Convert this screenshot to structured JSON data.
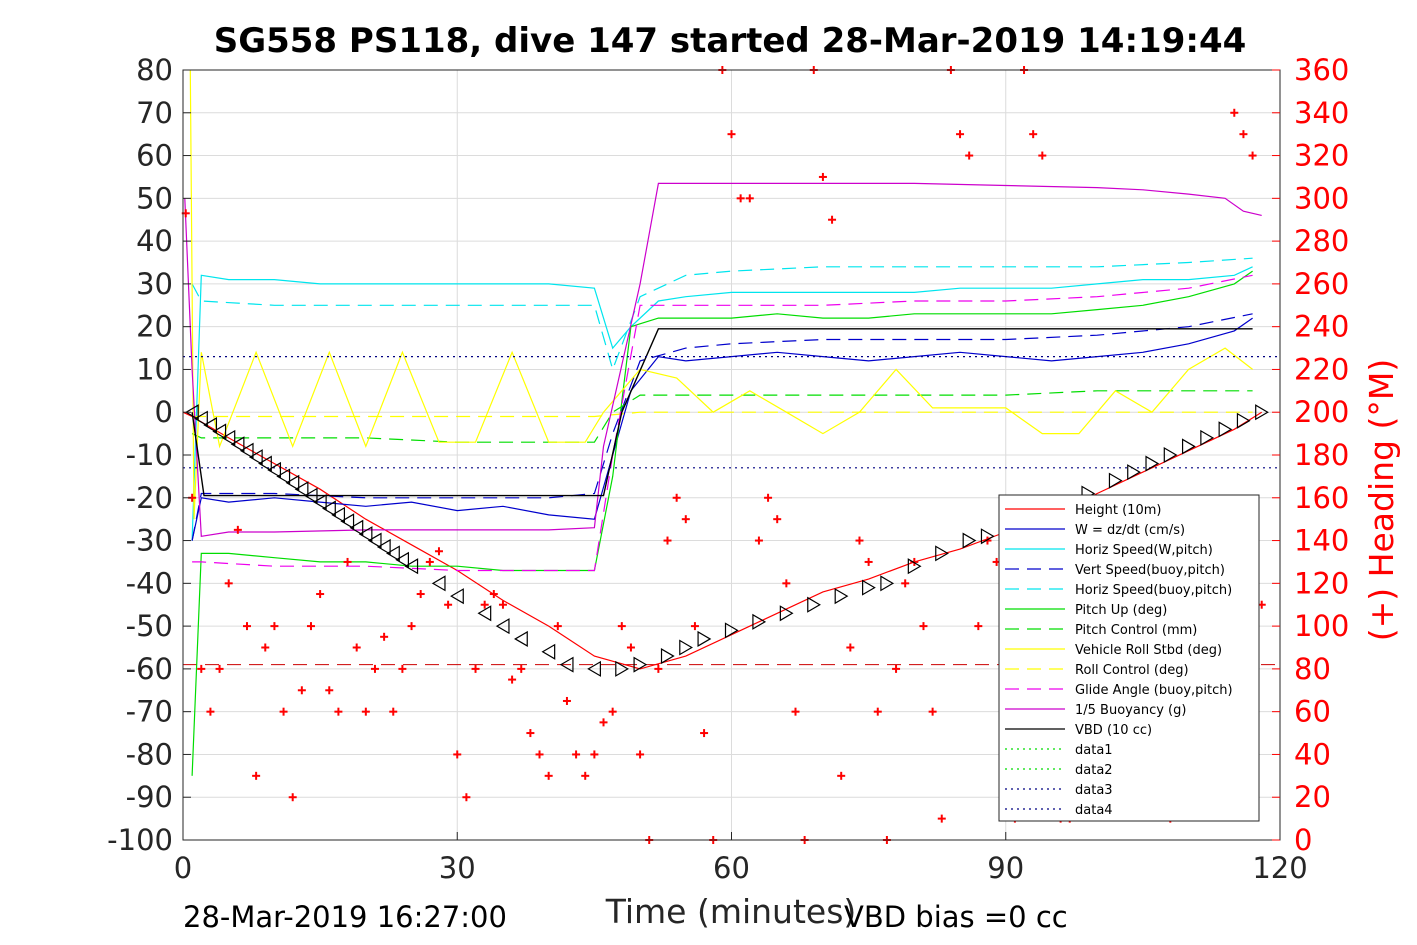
{
  "chart_data": {
    "type": "line",
    "title": "SG558 PS118, dive 147 started 28-Mar-2019 14:19:44",
    "xlabel": "Time (minutes)",
    "ylabel_right": "(+) Heading (°M)",
    "xlim": [
      0,
      120
    ],
    "ylim": [
      -100,
      80
    ],
    "ylim_right": [
      0,
      360
    ],
    "x_ticks": [
      0,
      30,
      60,
      90,
      120
    ],
    "y_ticks": [
      80,
      70,
      60,
      50,
      40,
      30,
      20,
      10,
      0,
      -10,
      -20,
      -30,
      -40,
      -50,
      -60,
      -70,
      -80,
      -90,
      -100
    ],
    "y_ticks_right": [
      360,
      340,
      320,
      300,
      280,
      260,
      240,
      220,
      200,
      180,
      160,
      140,
      120,
      100,
      80,
      60,
      40,
      20,
      0
    ],
    "grid": true,
    "legend_position": "lower-right",
    "footer_left": "28-Mar-2019 16:27:00",
    "footer_right": "VBD bias =0 cc",
    "series": [
      {
        "name": "Height (10m)",
        "color": "#ff0000",
        "style": "solid",
        "x": [
          0,
          1,
          5,
          10,
          15,
          20,
          25,
          30,
          35,
          40,
          45,
          50,
          55,
          60,
          65,
          70,
          75,
          80,
          85,
          90,
          95,
          100,
          105,
          110,
          115,
          118
        ],
        "values": [
          0,
          -1,
          -6,
          -12,
          -18,
          -25,
          -31,
          -37,
          -44,
          -50,
          -57,
          -60,
          -57,
          -52,
          -47,
          -42,
          -39,
          -35,
          -32,
          -28,
          -24,
          -19,
          -14,
          -9,
          -4,
          0
        ]
      },
      {
        "name": "W = dz/dt (cm/s)",
        "color": "#0000cc",
        "style": "solid",
        "x": [
          1,
          2,
          5,
          10,
          15,
          20,
          25,
          30,
          35,
          40,
          45,
          47,
          49,
          52,
          55,
          60,
          65,
          70,
          75,
          80,
          85,
          90,
          95,
          100,
          105,
          110,
          115,
          117
        ],
        "values": [
          -30,
          -20,
          -21,
          -20,
          -21,
          -22,
          -21,
          -23,
          -22,
          -24,
          -25,
          -10,
          5,
          13,
          12,
          13,
          14,
          13,
          12,
          13,
          14,
          13,
          12,
          13,
          14,
          16,
          19,
          22
        ]
      },
      {
        "name": "Horiz Speed(W,pitch)",
        "color": "#00e5ee",
        "style": "solid",
        "x": [
          1,
          2,
          5,
          10,
          15,
          20,
          25,
          30,
          35,
          40,
          45,
          47,
          49,
          52,
          55,
          60,
          65,
          70,
          75,
          80,
          85,
          90,
          95,
          100,
          105,
          110,
          115,
          117
        ],
        "values": [
          -30,
          32,
          31,
          31,
          30,
          30,
          30,
          30,
          30,
          30,
          29,
          15,
          20,
          26,
          27,
          28,
          28,
          28,
          28,
          28,
          29,
          29,
          29,
          30,
          31,
          31,
          32,
          34
        ]
      },
      {
        "name": "Vert Speed(buoy,pitch)",
        "color": "#0000cc",
        "style": "dashed",
        "x": [
          1,
          2,
          10,
          20,
          30,
          40,
          45,
          47,
          50,
          55,
          60,
          70,
          80,
          90,
          100,
          110,
          117
        ],
        "values": [
          -30,
          -19,
          -19,
          -20,
          -20,
          -20,
          -19,
          -5,
          12,
          15,
          16,
          17,
          17,
          17,
          18,
          20,
          23
        ]
      },
      {
        "name": "Horiz Speed(buoy,pitch)",
        "color": "#00e5ee",
        "style": "dashed",
        "x": [
          1,
          2,
          10,
          20,
          30,
          40,
          45,
          47,
          50,
          55,
          60,
          70,
          80,
          90,
          100,
          110,
          117
        ],
        "values": [
          30,
          26,
          25,
          25,
          25,
          25,
          25,
          10,
          27,
          32,
          33,
          34,
          34,
          34,
          34,
          35,
          36
        ]
      },
      {
        "name": "Pitch Up (deg)",
        "color": "#00dd00",
        "style": "solid",
        "x": [
          1,
          2,
          5,
          10,
          15,
          20,
          25,
          30,
          35,
          40,
          45,
          47,
          49,
          52,
          55,
          60,
          65,
          70,
          75,
          80,
          85,
          90,
          95,
          100,
          105,
          110,
          115,
          117
        ],
        "values": [
          -85,
          -33,
          -33,
          -34,
          -35,
          -35,
          -36,
          -36,
          -37,
          -37,
          -37,
          -15,
          20,
          22,
          22,
          22,
          23,
          22,
          22,
          23,
          23,
          23,
          23,
          24,
          25,
          27,
          30,
          33
        ]
      },
      {
        "name": "Pitch Control (mm)",
        "color": "#00dd00",
        "style": "dashed",
        "x": [
          1,
          2,
          10,
          20,
          30,
          40,
          45,
          47,
          50,
          60,
          70,
          80,
          90,
          100,
          110,
          117
        ],
        "values": [
          -5,
          -6,
          -6,
          -6,
          -7,
          -7,
          -7,
          0,
          4,
          4,
          4,
          4,
          4,
          5,
          5,
          5
        ]
      },
      {
        "name": "Vehicle Roll Stbd (deg)",
        "color": "#ffff00",
        "style": "solid",
        "x": [
          0.8,
          1.2,
          2,
          4,
          8,
          12,
          16,
          20,
          24,
          28,
          32,
          36,
          40,
          44,
          46,
          48,
          50,
          54,
          58,
          62,
          66,
          70,
          74,
          78,
          82,
          86,
          90,
          94,
          98,
          102,
          106,
          110,
          114,
          117
        ],
        "values": [
          80,
          -25,
          14,
          -8,
          14,
          -8,
          14,
          -8,
          14,
          -7,
          -7,
          14,
          -7,
          -7,
          0,
          5,
          10,
          8,
          0,
          5,
          0,
          -5,
          0,
          10,
          1,
          1,
          1,
          -5,
          -5,
          5,
          0,
          10,
          15,
          10
        ]
      },
      {
        "name": "Roll Control (deg)",
        "color": "#ffff00",
        "style": "dashed",
        "x": [
          1,
          10,
          20,
          30,
          40,
          45,
          50,
          60,
          70,
          80,
          90,
          100,
          110,
          117
        ],
        "values": [
          -1,
          -1,
          -1,
          -1,
          -1,
          -1,
          0,
          0,
          0,
          0,
          0,
          0,
          0,
          0
        ]
      },
      {
        "name": "Glide Angle (buoy,pitch)",
        "color": "#ee00ee",
        "style": "dashed",
        "x": [
          1,
          2,
          10,
          20,
          30,
          40,
          45,
          47,
          50,
          55,
          60,
          70,
          80,
          90,
          100,
          110,
          117
        ],
        "values": [
          -35,
          -35,
          -36,
          -36,
          -37,
          -37,
          -37,
          -10,
          25,
          25,
          25,
          25,
          26,
          26,
          27,
          29,
          32
        ]
      },
      {
        "name": "1/5 Buoyancy (g)",
        "color": "#cc00cc",
        "style": "solid",
        "x": [
          0.2,
          1,
          2,
          5,
          10,
          20,
          30,
          40,
          45,
          46,
          50,
          52,
          55,
          60,
          70,
          80,
          90,
          100,
          105,
          110,
          114,
          116,
          118
        ],
        "values": [
          50,
          10,
          -29,
          -28,
          -28,
          -27.5,
          -27.5,
          -27.5,
          -27,
          -8,
          30,
          53.5,
          53.5,
          53.5,
          53.5,
          53.5,
          53,
          52.5,
          52,
          51,
          50,
          47,
          46
        ]
      },
      {
        "name": "VBD (10 cc)",
        "color": "#000000",
        "style": "solid",
        "x": [
          1,
          2.3,
          10,
          20,
          30,
          40,
          45,
          46,
          48,
          52,
          55,
          60,
          70,
          80,
          90,
          100,
          110,
          117
        ],
        "values": [
          0,
          -19.5,
          -19.5,
          -19.5,
          -19.5,
          -19.5,
          -19.5,
          -19.5,
          0,
          19.5,
          19.5,
          19.5,
          19.5,
          19.5,
          19.5,
          19.5,
          19.5,
          19.5
        ]
      },
      {
        "name": "data1",
        "color": "#00dd00",
        "style": "dotted",
        "x": [],
        "values": []
      },
      {
        "name": "data2",
        "color": "#00dd00",
        "style": "dotted",
        "x": [],
        "values": []
      },
      {
        "name": "data3",
        "color": "#000080",
        "style": "dotted",
        "x": [
          0,
          120
        ],
        "values": [
          13,
          13
        ]
      },
      {
        "name": "data4",
        "color": "#000080",
        "style": "dotted",
        "x": [
          0,
          120
        ],
        "values": [
          -13,
          -13
        ]
      }
    ],
    "reference_lines": [
      {
        "color": "#cc0000",
        "style": "dashed",
        "y": -59
      }
    ],
    "heading_series": {
      "color": "#ff0000",
      "marker": "+",
      "axis": "right",
      "x": [
        0.3,
        1,
        2,
        3,
        4,
        5,
        6,
        7,
        8,
        9,
        10,
        11,
        12,
        13,
        14,
        15,
        16,
        17,
        18,
        19,
        20,
        21,
        22,
        23,
        24,
        25,
        26,
        27,
        28,
        29,
        30,
        31,
        32,
        33,
        34,
        35,
        36,
        37,
        38,
        39,
        40,
        41,
        42,
        43,
        44,
        45,
        46,
        47,
        48,
        49,
        50,
        51,
        52,
        53,
        54,
        55,
        56,
        57,
        58,
        59,
        60,
        61,
        62,
        63,
        64,
        65,
        66,
        67,
        68,
        69,
        70,
        71,
        72,
        73,
        74,
        75,
        76,
        77,
        78,
        79,
        80,
        81,
        82,
        83,
        84,
        85,
        86,
        87,
        88,
        89,
        90,
        91,
        92,
        93,
        94,
        95,
        96,
        97,
        98,
        99,
        100,
        101,
        102,
        103,
        104,
        105,
        106,
        107,
        108,
        109,
        110,
        111,
        112,
        113,
        114,
        115,
        116,
        117,
        118
      ],
      "values": [
        293,
        160,
        80,
        60,
        80,
        120,
        145,
        100,
        30,
        90,
        100,
        60,
        20,
        70,
        100,
        115,
        70,
        60,
        130,
        90,
        60,
        80,
        95,
        60,
        80,
        100,
        115,
        130,
        135,
        110,
        40,
        20,
        80,
        110,
        115,
        110,
        75,
        80,
        50,
        40,
        30,
        100,
        65,
        40,
        30,
        40,
        55,
        60,
        100,
        90,
        40,
        0,
        80,
        140,
        160,
        150,
        100,
        50,
        0,
        360,
        330,
        300,
        300,
        140,
        160,
        150,
        120,
        60,
        0,
        360,
        310,
        290,
        30,
        90,
        140,
        130,
        60,
        0,
        80,
        120,
        130,
        100,
        60,
        10,
        360,
        330,
        320,
        100,
        140,
        130,
        60,
        10,
        360,
        330,
        320,
        60,
        10,
        10,
        20,
        50,
        80,
        100,
        120,
        140,
        130,
        110,
        80,
        30,
        10,
        60,
        90,
        120,
        130,
        140,
        130,
        340,
        330,
        320,
        110
      ]
    },
    "vbd_markers": {
      "marker": "triangle",
      "color": "#000000",
      "x": [
        1,
        2,
        3,
        4,
        5,
        6,
        7,
        8,
        9,
        10,
        11,
        12,
        13,
        14,
        15,
        16,
        17,
        18,
        19,
        20,
        21,
        22,
        23,
        24,
        25,
        28,
        30,
        33,
        35,
        37,
        40,
        42,
        45,
        48,
        50,
        53,
        55,
        57,
        60,
        63,
        66,
        69,
        72,
        75,
        77,
        80,
        83,
        86,
        88,
        90,
        93,
        96,
        99,
        102,
        104,
        106,
        108,
        110,
        112,
        114,
        116,
        118
      ],
      "values": [
        0,
        -1.5,
        -3,
        -4.5,
        -6,
        -7.5,
        -9,
        -10.5,
        -12,
        -13.5,
        -15,
        -16.5,
        -18,
        -19.5,
        -21,
        -22.5,
        -24,
        -25.5,
        -27,
        -28.5,
        -30,
        -31.5,
        -33,
        -34.5,
        -36,
        -40,
        -43,
        -47,
        -50,
        -53,
        -56,
        -59,
        -60,
        -60,
        -59,
        -57,
        -55,
        -53,
        -51,
        -49,
        -47,
        -45,
        -43,
        -41,
        -40,
        -36,
        -33,
        -30,
        -29,
        -27,
        -25,
        -22,
        -19,
        -16,
        -14,
        -12,
        -10,
        -8,
        -6,
        -4,
        -2,
        0
      ]
    }
  }
}
